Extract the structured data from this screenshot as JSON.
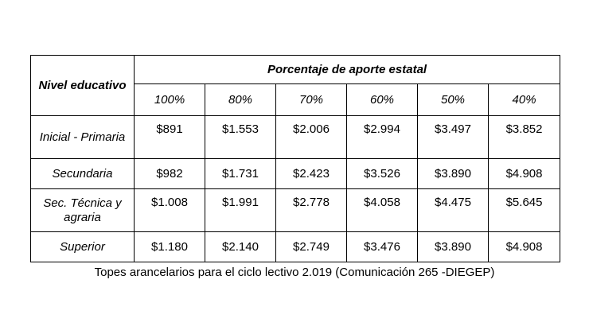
{
  "table": {
    "corner_label": "Nivel educativo",
    "group_header": "Porcentaje de aporte estatal",
    "percentages": [
      "100%",
      "80%",
      "70%",
      "60%",
      "50%",
      "40%"
    ],
    "rows": [
      {
        "level": "Inicial - Primaria",
        "values": [
          "$891",
          "$1.553",
          "$2.006",
          "$2.994",
          "$3.497",
          "$3.852"
        ]
      },
      {
        "level": "Secundaria",
        "values": [
          "$982",
          "$1.731",
          "$2.423",
          "$3.526",
          "$3.890",
          "$4.908"
        ]
      },
      {
        "level": "Sec. Técnica y agraria",
        "values": [
          "$1.008",
          "$1.991",
          "$2.778",
          "$4.058",
          "$4.475",
          "$5.645"
        ]
      },
      {
        "level": "Superior",
        "values": [
          "$1.180",
          "$2.140",
          "$2.749",
          "$3.476",
          "$3.890",
          "$4.908"
        ]
      }
    ]
  },
  "caption": "Topes arancelarios para el ciclo lectivo 2.019 (Comunicación 265 -DIEGEP)"
}
